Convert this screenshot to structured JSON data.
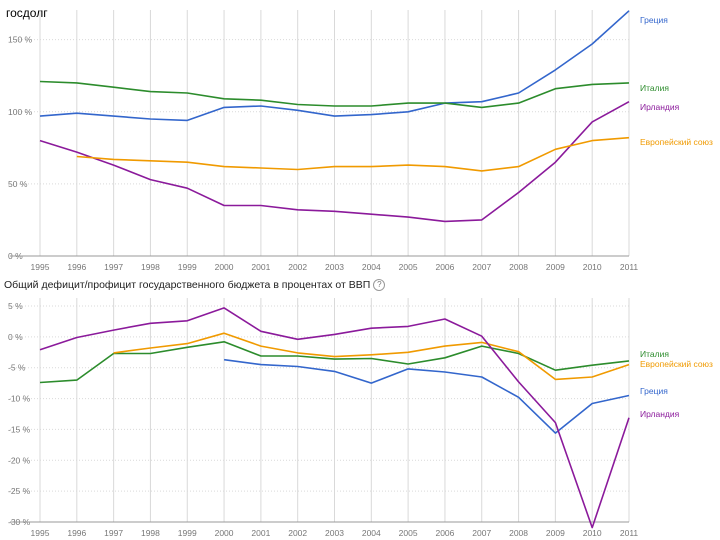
{
  "page": {
    "title": "госдолг"
  },
  "chart_data": [
    {
      "type": "line",
      "title": "госдолг",
      "x": [
        1995,
        1996,
        1997,
        1998,
        1999,
        2000,
        2001,
        2002,
        2003,
        2004,
        2005,
        2006,
        2007,
        2008,
        2009,
        2010,
        2011
      ],
      "x_tick_labels": [
        "1995",
        "1996",
        "1997",
        "1998",
        "1999",
        "2000",
        "2001",
        "2002",
        "2003",
        "2004",
        "2005",
        "2006",
        "2007",
        "2008",
        "2009",
        "2010",
        "2011"
      ],
      "y_ticks": [
        0,
        50,
        100,
        150
      ],
      "y_tick_labels": [
        "0 %",
        "50 %",
        "100 %",
        "150 %"
      ],
      "ylim": [
        0,
        165
      ],
      "grid": true,
      "legend_position": "right",
      "series": [
        {
          "name": "Греция",
          "color": "#3366cc",
          "values": [
            97,
            99,
            97,
            95,
            94,
            103,
            104,
            101,
            97,
            98,
            100,
            106,
            107,
            113,
            129,
            147,
            170
          ]
        },
        {
          "name": "Италия",
          "color": "#2c8c2c",
          "values": [
            121,
            120,
            117,
            114,
            113,
            109,
            108,
            105,
            104,
            104,
            106,
            106,
            103,
            106,
            116,
            119,
            120
          ]
        },
        {
          "name": "Ирландия",
          "color": "#8b1a9b",
          "values": [
            80,
            72,
            63,
            53,
            47,
            35,
            35,
            32,
            31,
            29,
            27,
            24,
            25,
            44,
            65,
            93,
            107
          ]
        },
        {
          "name": "Европейский союз",
          "color": "#f09a00",
          "values": [
            null,
            69,
            67,
            66,
            65,
            62,
            61,
            60,
            62,
            62,
            63,
            62,
            59,
            62,
            74,
            80,
            82
          ]
        }
      ]
    },
    {
      "type": "line",
      "title": "Общий дефицит/профицит государственного бюджета в процентах от ВВП",
      "info_icon": "info-icon",
      "x": [
        1995,
        1996,
        1997,
        1998,
        1999,
        2000,
        2001,
        2002,
        2003,
        2004,
        2005,
        2006,
        2007,
        2008,
        2009,
        2010,
        2011
      ],
      "x_tick_labels": [
        "1995",
        "1996",
        "1997",
        "1998",
        "1999",
        "2000",
        "2001",
        "2002",
        "2003",
        "2004",
        "2005",
        "2006",
        "2007",
        "2008",
        "2009",
        "2010",
        "2011"
      ],
      "y_ticks": [
        5,
        0,
        -5,
        -10,
        -15,
        -20,
        -25,
        -30
      ],
      "y_tick_labels": [
        "5 %",
        "0 %",
        "-5 %",
        "-10 %",
        "-15 %",
        "-20 %",
        "-25 %",
        "-30 %"
      ],
      "ylim": [
        -30,
        5
      ],
      "grid": true,
      "legend_position": "right",
      "series": [
        {
          "name": "Италия",
          "color": "#2c8c2c",
          "values": [
            -7.4,
            -7.0,
            -2.7,
            -2.7,
            -1.7,
            -0.8,
            -3.1,
            -3.1,
            -3.6,
            -3.5,
            -4.4,
            -3.4,
            -1.5,
            -2.7,
            -5.4,
            -4.6,
            -3.9
          ]
        },
        {
          "name": "Европейский союз",
          "color": "#f09a00",
          "values": [
            null,
            null,
            -2.6,
            -1.8,
            -1.1,
            0.6,
            -1.5,
            -2.6,
            -3.2,
            -2.9,
            -2.5,
            -1.5,
            -0.9,
            -2.4,
            -6.9,
            -6.5,
            -4.5
          ]
        },
        {
          "name": "Греция",
          "color": "#3366cc",
          "values": [
            null,
            null,
            null,
            null,
            null,
            -3.7,
            -4.5,
            -4.8,
            -5.6,
            -7.5,
            -5.2,
            -5.7,
            -6.5,
            -9.8,
            -15.6,
            -10.8,
            -9.5
          ]
        },
        {
          "name": "Ирландия",
          "color": "#8b1a9b",
          "values": [
            -2.1,
            -0.1,
            1.1,
            2.2,
            2.6,
            4.7,
            0.9,
            -0.4,
            0.4,
            1.4,
            1.7,
            2.9,
            0.1,
            -7.3,
            -13.9,
            -30.9,
            -13.1
          ]
        }
      ]
    }
  ]
}
